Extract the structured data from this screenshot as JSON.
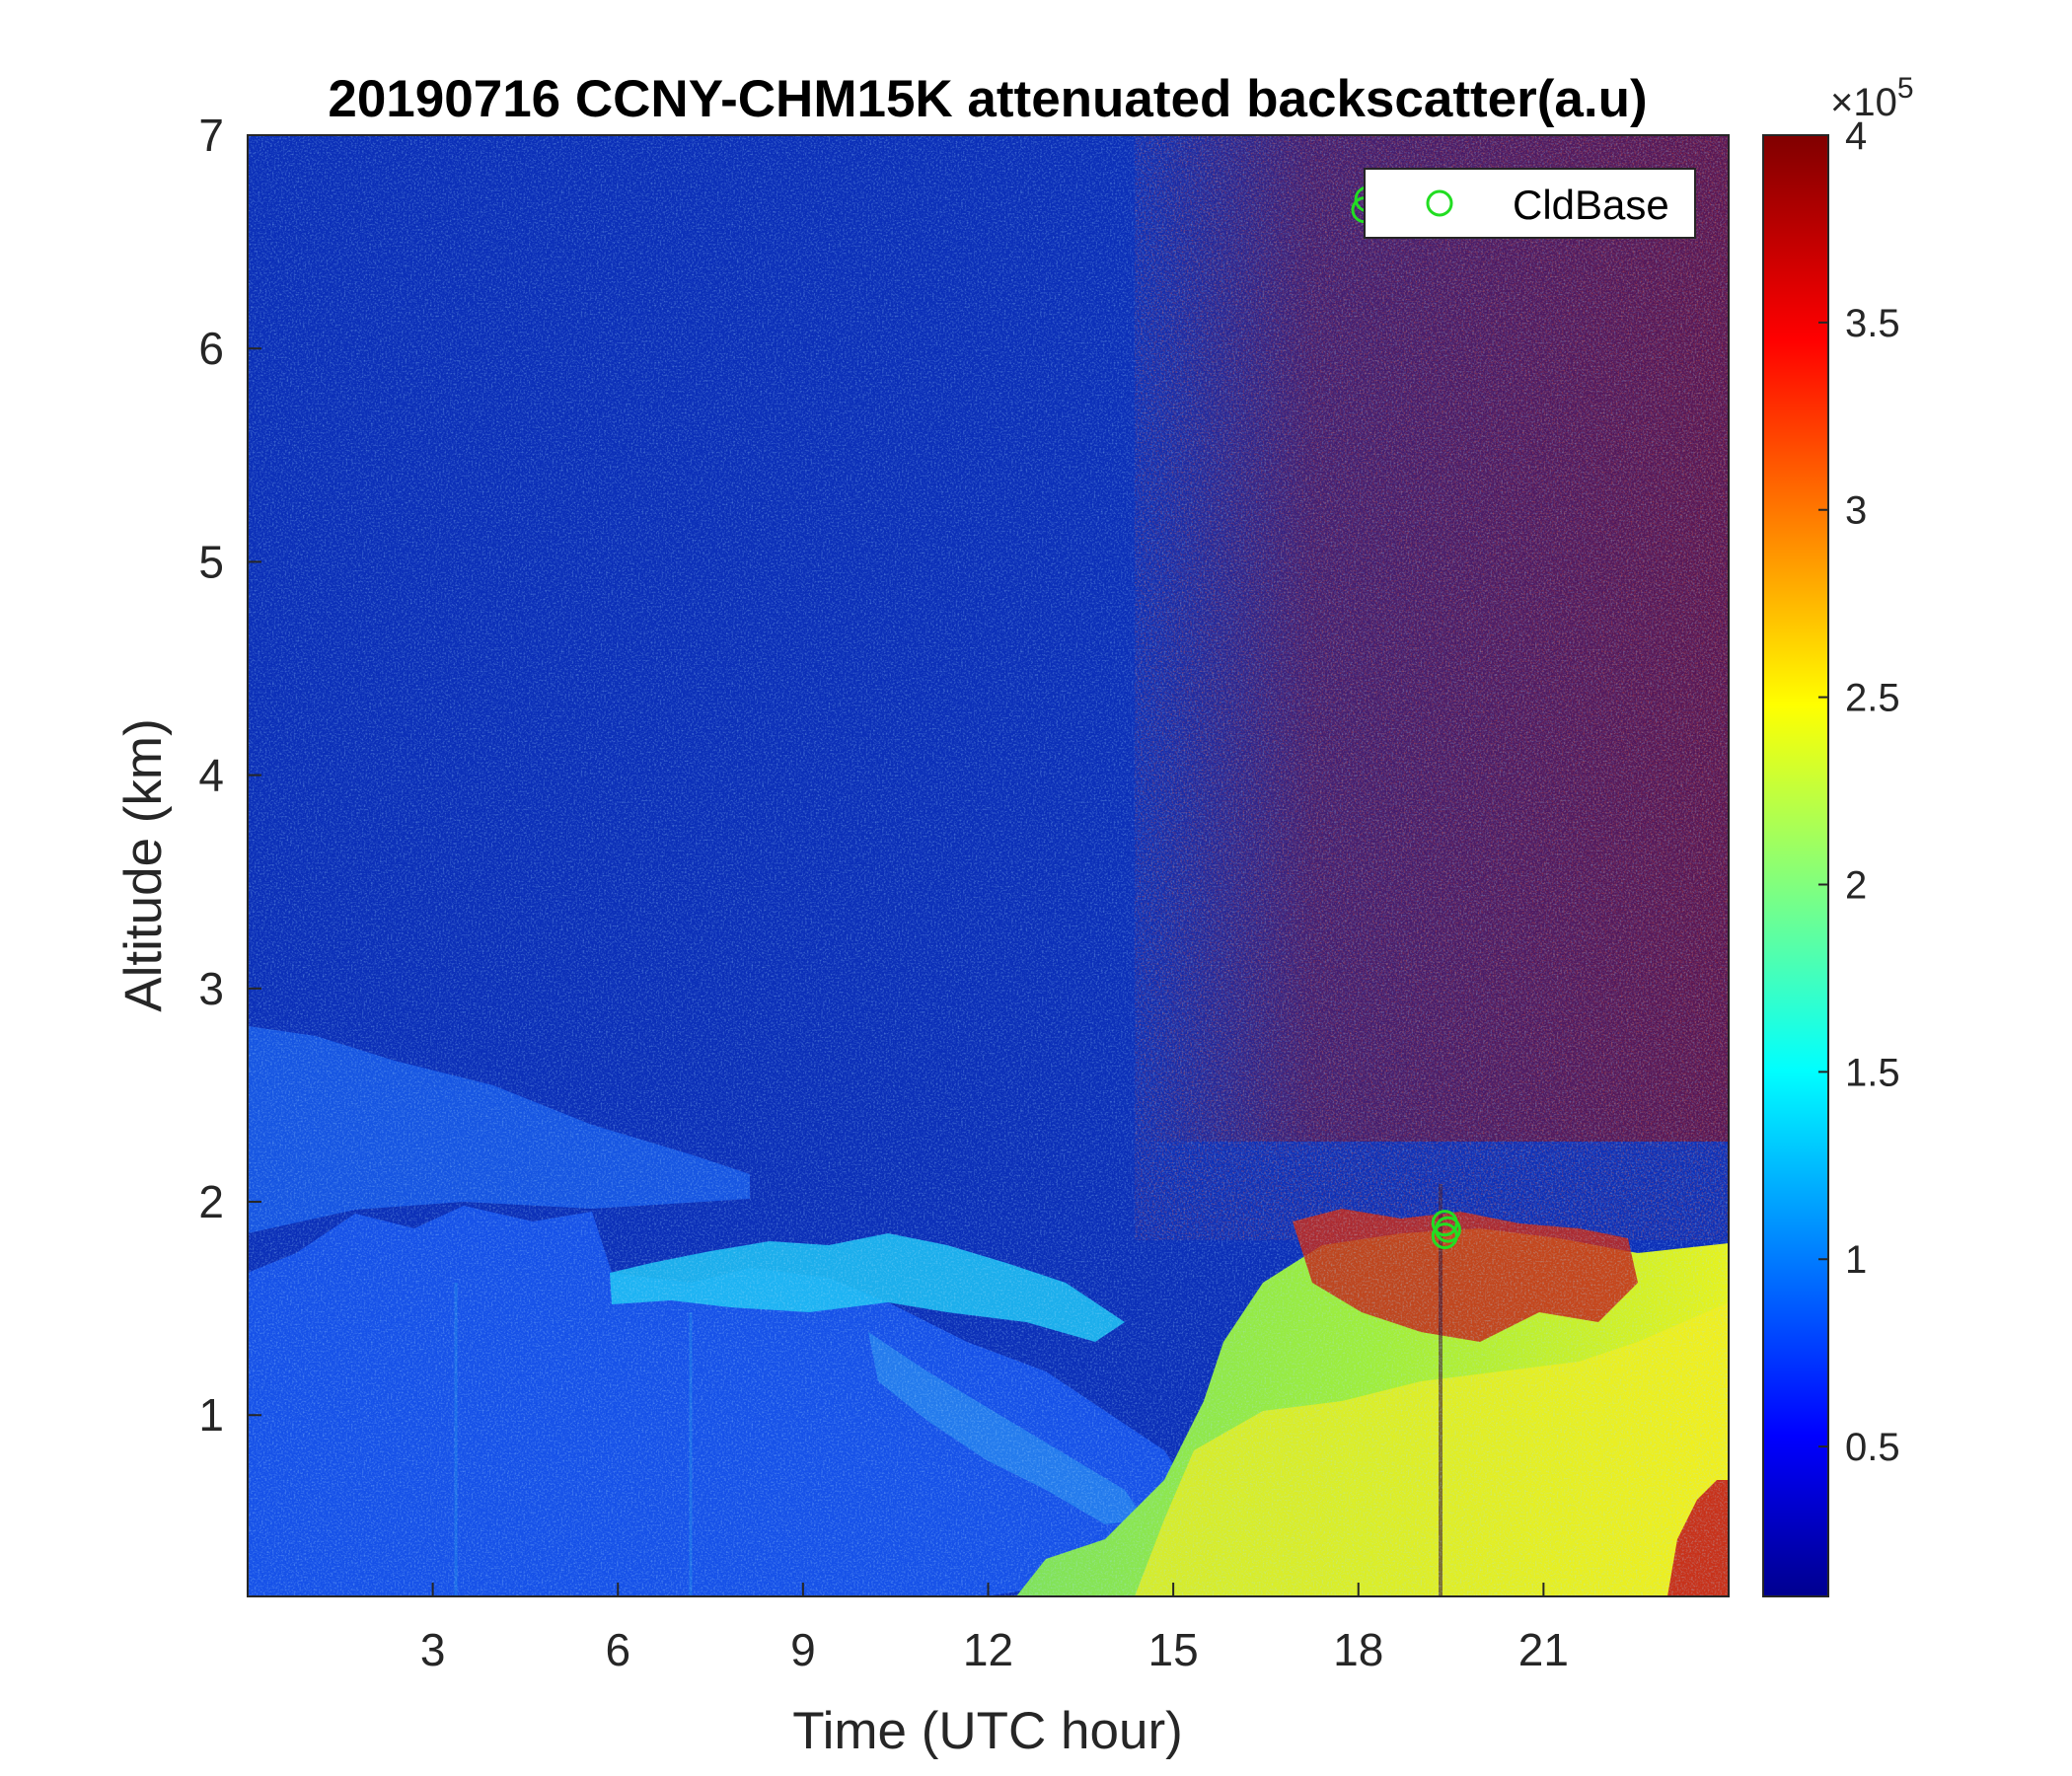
{
  "chart_data": {
    "type": "heatmap",
    "title": "20190716 CCNY-CHM15K attenuated backscatter(a.u)",
    "xlabel": "Time (UTC hour)",
    "ylabel": "Altitude (km)",
    "xlim": [
      0,
      24
    ],
    "ylim": [
      0.15,
      7
    ],
    "x_ticks": [
      3,
      6,
      9,
      12,
      15,
      18,
      21
    ],
    "y_ticks": [
      1,
      2,
      3,
      4,
      5,
      6,
      7
    ],
    "colormap": "jet",
    "colorbar": {
      "clim": [
        0.1,
        4
      ],
      "ticks": [
        0.5,
        1,
        1.5,
        2,
        2.5,
        3,
        3.5,
        4
      ],
      "exponent_label": "×10",
      "exponent": "5"
    },
    "legend": {
      "placement": "top-right",
      "entries": [
        {
          "name": "CldBase",
          "marker": "circle",
          "color": "#22dd22"
        }
      ]
    },
    "cloud_base": [
      {
        "x": 18.1,
        "y": 6.65
      },
      {
        "x": 18.15,
        "y": 6.7
      },
      {
        "x": 19.4,
        "y": 1.84
      },
      {
        "x": 19.4,
        "y": 1.9
      },
      {
        "x": 19.45,
        "y": 1.87
      }
    ]
  }
}
